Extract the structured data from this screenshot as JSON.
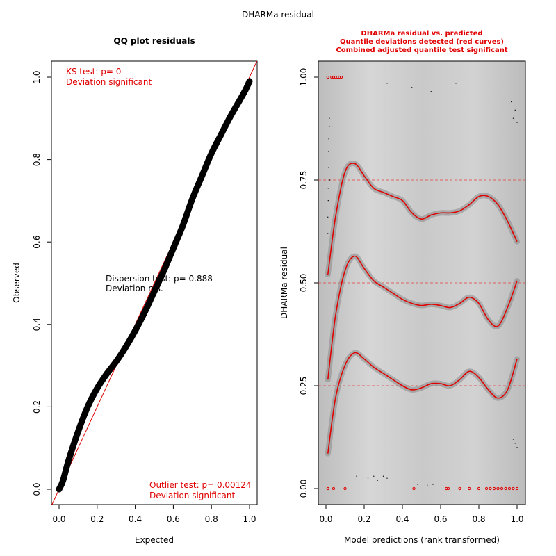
{
  "page_title": "DHARMa residual",
  "colors": {
    "red": "#e00000",
    "black": "#000000",
    "dashed": "#e06060",
    "band": "#888888"
  },
  "chart_data": [
    {
      "type": "scatter",
      "title": "QQ plot residuals",
      "xlabel": "Expected",
      "ylabel": "Observed",
      "xlim": [
        0,
        1
      ],
      "ylim": [
        0,
        1
      ],
      "x_ticks": [
        "0.0",
        "0.2",
        "0.4",
        "0.6",
        "0.8",
        "1.0"
      ],
      "y_ticks": [
        "0.0",
        "0.2",
        "0.4",
        "0.6",
        "0.8",
        "1.0"
      ],
      "annotations": {
        "ks_line1": "KS test: p= 0",
        "ks_line2": "Deviation  significant",
        "disp_line1": "Dispersion test: p= 0.888",
        "disp_line2": "Deviation  n.s.",
        "outlier_line1": "Outlier test: p= 0.00124",
        "outlier_line2": "Deviation  significant"
      },
      "qq_curve": {
        "x": [
          0.0,
          0.02,
          0.05,
          0.1,
          0.15,
          0.2,
          0.25,
          0.3,
          0.35,
          0.4,
          0.45,
          0.5,
          0.55,
          0.6,
          0.65,
          0.7,
          0.75,
          0.8,
          0.85,
          0.9,
          0.95,
          0.98,
          1.0
        ],
        "y": [
          0.0,
          0.02,
          0.07,
          0.14,
          0.2,
          0.245,
          0.28,
          0.31,
          0.345,
          0.385,
          0.43,
          0.48,
          0.53,
          0.585,
          0.64,
          0.705,
          0.76,
          0.815,
          0.86,
          0.905,
          0.945,
          0.97,
          0.99
        ]
      },
      "reference_line": {
        "intercept": 0,
        "slope": 1
      }
    },
    {
      "type": "line",
      "title_lines": [
        "DHARMa residual vs. predicted",
        "Quantile deviations detected (red curves)",
        "Combined adjusted quantile test significant"
      ],
      "xlabel": "Model predictions (rank transformed)",
      "ylabel": "DHARMa residual",
      "xlim": [
        0,
        1
      ],
      "ylim": [
        0,
        1
      ],
      "x_ticks": [
        "0.0",
        "0.2",
        "0.4",
        "0.6",
        "0.8",
        "1.0"
      ],
      "y_ticks": [
        "0.00",
        "0.25",
        "0.50",
        "0.75",
        "1.00"
      ],
      "reference_quantiles": [
        0.25,
        0.5,
        0.75
      ],
      "series": [
        {
          "x": [
            0.01,
            0.05,
            0.1,
            0.15,
            0.2,
            0.25,
            0.3,
            0.35,
            0.4,
            0.45,
            0.5,
            0.55,
            0.6,
            0.65,
            0.7,
            0.75,
            0.8,
            0.85,
            0.9,
            0.95,
            1.0
          ],
          "y": [
            0.52,
            0.66,
            0.77,
            0.79,
            0.76,
            0.73,
            0.72,
            0.71,
            0.7,
            0.67,
            0.655,
            0.665,
            0.67,
            0.67,
            0.675,
            0.69,
            0.71,
            0.71,
            0.69,
            0.65,
            0.6
          ]
        },
        {
          "x": [
            0.01,
            0.05,
            0.1,
            0.15,
            0.2,
            0.25,
            0.3,
            0.35,
            0.4,
            0.45,
            0.5,
            0.55,
            0.6,
            0.65,
            0.7,
            0.75,
            0.8,
            0.85,
            0.9,
            0.95,
            1.0
          ],
          "y": [
            0.265,
            0.42,
            0.53,
            0.565,
            0.535,
            0.505,
            0.49,
            0.475,
            0.46,
            0.45,
            0.445,
            0.448,
            0.445,
            0.44,
            0.45,
            0.465,
            0.45,
            0.41,
            0.395,
            0.44,
            0.505
          ]
        },
        {
          "x": [
            0.01,
            0.05,
            0.1,
            0.15,
            0.2,
            0.25,
            0.3,
            0.35,
            0.4,
            0.45,
            0.5,
            0.55,
            0.6,
            0.65,
            0.7,
            0.75,
            0.8,
            0.85,
            0.9,
            0.95,
            1.0
          ],
          "y": [
            0.085,
            0.22,
            0.3,
            0.33,
            0.315,
            0.295,
            0.28,
            0.265,
            0.25,
            0.24,
            0.245,
            0.255,
            0.255,
            0.25,
            0.265,
            0.285,
            0.27,
            0.24,
            0.22,
            0.24,
            0.315
          ]
        }
      ],
      "black_points": [
        [
          0.01,
          0.62
        ],
        [
          0.01,
          0.66
        ],
        [
          0.012,
          0.7
        ],
        [
          0.012,
          0.73
        ],
        [
          0.015,
          0.78
        ],
        [
          0.015,
          0.82
        ],
        [
          0.015,
          0.85
        ],
        [
          0.018,
          0.88
        ],
        [
          0.018,
          0.9
        ],
        [
          0.02,
          0.75
        ],
        [
          0.32,
          0.985
        ],
        [
          0.45,
          0.975
        ],
        [
          0.55,
          0.965
        ],
        [
          0.68,
          0.985
        ],
        [
          0.97,
          0.94
        ],
        [
          0.98,
          0.9
        ],
        [
          0.99,
          0.92
        ],
        [
          1.0,
          0.89
        ],
        [
          0.16,
          0.03
        ],
        [
          0.22,
          0.025
        ],
        [
          0.25,
          0.03
        ],
        [
          0.27,
          0.02
        ],
        [
          0.3,
          0.03
        ],
        [
          0.32,
          0.025
        ],
        [
          0.48,
          0.01
        ],
        [
          0.53,
          0.008
        ],
        [
          0.56,
          0.01
        ],
        [
          0.98,
          0.12
        ],
        [
          0.99,
          0.11
        ],
        [
          1.0,
          0.1
        ]
      ],
      "red_points": [
        [
          0.01,
          1.0
        ],
        [
          0.03,
          1.0
        ],
        [
          0.04,
          1.0
        ],
        [
          0.05,
          1.0
        ],
        [
          0.06,
          1.0
        ],
        [
          0.07,
          1.0
        ],
        [
          0.08,
          1.0
        ],
        [
          0.01,
          0.0
        ],
        [
          0.04,
          0.0
        ],
        [
          0.1,
          0.0
        ],
        [
          0.46,
          0.0
        ],
        [
          0.63,
          0.0
        ],
        [
          0.64,
          0.0
        ],
        [
          0.7,
          0.0
        ],
        [
          0.75,
          0.0
        ],
        [
          0.8,
          0.0
        ],
        [
          0.84,
          0.0
        ],
        [
          0.86,
          0.0
        ],
        [
          0.88,
          0.0
        ],
        [
          0.9,
          0.0
        ],
        [
          0.92,
          0.0
        ],
        [
          0.94,
          0.0
        ],
        [
          0.96,
          0.0
        ],
        [
          0.98,
          0.0
        ],
        [
          1.0,
          0.0
        ]
      ]
    }
  ]
}
